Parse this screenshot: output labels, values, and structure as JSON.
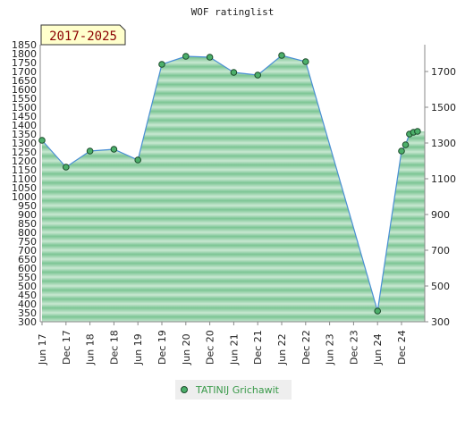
{
  "chart_data": {
    "type": "area",
    "title": "WOF ratinglist",
    "period_badge": "2017-2025",
    "x_ticks": [
      "Jun 17",
      "Dec 17",
      "Jun 18",
      "Dec 18",
      "Jun 19",
      "Dec 19",
      "Jun 20",
      "Dec 20",
      "Jun 21",
      "Dec 21",
      "Jun 22",
      "Dec 22",
      "Jun 23",
      "Dec 23",
      "Jun 24",
      "Dec 24"
    ],
    "y_left_ticks": [
      "1850",
      "1800",
      "1750",
      "1700",
      "1650",
      "1600",
      "1550",
      "1500",
      "1450",
      "1400",
      "1350",
      "1300",
      "1250",
      "1200",
      "1150",
      "1100",
      "1050",
      "1000",
      "950",
      "900",
      "850",
      "800",
      "750",
      "700",
      "650",
      "600",
      "550",
      "500",
      "450",
      "400",
      "350",
      "300"
    ],
    "y_right_ticks": [
      "1700",
      "1500",
      "1300",
      "1100",
      "900",
      "700",
      "500",
      "300"
    ],
    "ylim": [
      300,
      1850
    ],
    "series": [
      {
        "name": "TATINIJ Grichawit",
        "x": [
          "2017-06",
          "2017-12",
          "2018-06",
          "2018-12",
          "2019-06",
          "2019-12",
          "2020-06",
          "2020-12",
          "2021-06",
          "2021-12",
          "2022-06",
          "2022-12",
          "2024-06",
          "2024-12",
          "2025-01",
          "2025-02",
          "2025-03",
          "2025-04"
        ],
        "values": [
          1315,
          1165,
          1255,
          1265,
          1205,
          1740,
          1785,
          1780,
          1695,
          1680,
          1790,
          1755,
          360,
          1255,
          1290,
          1350,
          1360,
          1365
        ]
      }
    ],
    "colors": {
      "area_fill": "#7cc594",
      "area_band_light": "#c9e8d2",
      "line": "#4a8fd4",
      "marker_fill": "#4caf6a",
      "marker_stroke": "#1a4a2a",
      "badge_bg": "#ffffcc",
      "badge_text": "#8b0000",
      "legend_text": "#3a9a4a",
      "legend_bg": "#eeeeee"
    },
    "grid": true,
    "legend_position": "bottom-center"
  }
}
